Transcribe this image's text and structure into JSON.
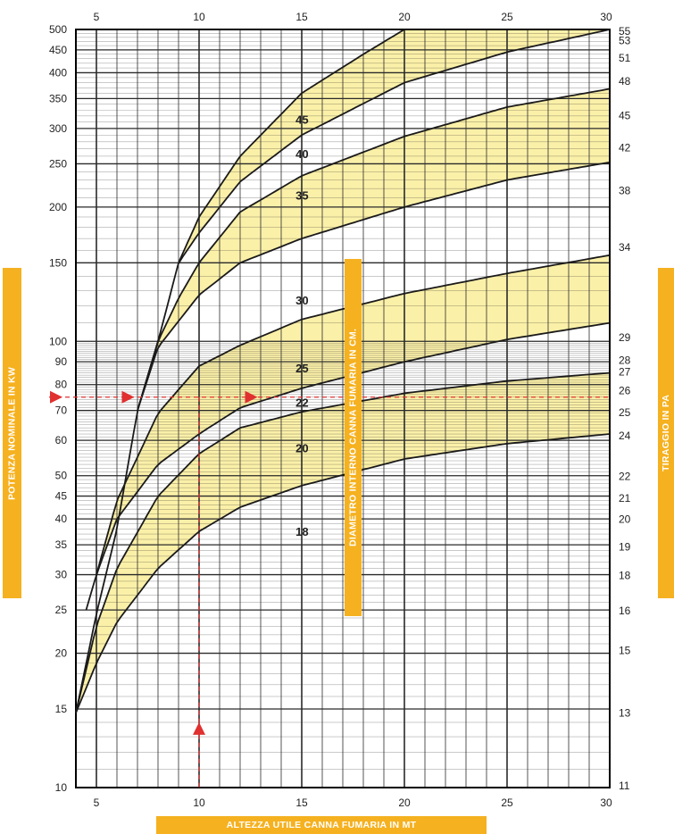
{
  "chart_data": {
    "type": "line",
    "x_axis": {
      "label": "ALTEZZA UTILE CANNA FUMARIA IN MT",
      "range": [
        4,
        30
      ],
      "ticks": [
        5,
        10,
        15,
        20,
        25,
        30
      ]
    },
    "y_axis_left": {
      "label": "POTENZA NOMINALE IN KW",
      "scale": "log",
      "range": [
        10,
        500
      ],
      "ticks": [
        10,
        15,
        20,
        25,
        30,
        35,
        40,
        45,
        50,
        60,
        70,
        80,
        90,
        100,
        150,
        200,
        250,
        300,
        350,
        400,
        450,
        500
      ]
    },
    "y_axis_right": {
      "label": "TIRAGGIO IN PA",
      "ticks": [
        {
          "label": "11",
          "kw": 10
        },
        {
          "label": "13",
          "kw": 14.7
        },
        {
          "label": "15",
          "kw": 20.3
        },
        {
          "label": "16",
          "kw": 24.9
        },
        {
          "label": "18",
          "kw": 29.9
        },
        {
          "label": "19",
          "kw": 34.6
        },
        {
          "label": "20",
          "kw": 39.9
        },
        {
          "label": "21",
          "kw": 44.5
        },
        {
          "label": "22",
          "kw": 49.8
        },
        {
          "label": "24",
          "kw": 61.4
        },
        {
          "label": "25",
          "kw": 69.2
        },
        {
          "label": "26",
          "kw": 77.6
        },
        {
          "label": "27",
          "kw": 85.4
        },
        {
          "label": "28",
          "kw": 90.7
        },
        {
          "label": "29",
          "kw": 102.1
        },
        {
          "label": "34",
          "kw": 162.3
        },
        {
          "label": "38",
          "kw": 217.5
        },
        {
          "label": "42",
          "kw": 271.4
        },
        {
          "label": "45",
          "kw": 320.5
        },
        {
          "label": "48",
          "kw": 383.0
        },
        {
          "label": "51",
          "kw": 431.0
        },
        {
          "label": "53",
          "kw": 471.5
        },
        {
          "label": "55",
          "kw": 520.0
        }
      ]
    },
    "center_label": "DIAMETRO INTERNO CANNA FUMARIA IN CM.",
    "series": [
      {
        "name": "18",
        "x": [
          4,
          5,
          6,
          8,
          10,
          12,
          15,
          20,
          25,
          30
        ],
        "y": [
          14.7,
          19,
          23.5,
          31,
          37.5,
          42.5,
          47.5,
          54.5,
          59,
          62
        ]
      },
      {
        "name": "20",
        "x": [
          4,
          5,
          6,
          8,
          10,
          12,
          15,
          20,
          25,
          30
        ],
        "y": [
          14.7,
          23,
          31,
          45,
          56,
          64,
          69.5,
          76.5,
          81.5,
          85
        ]
      },
      {
        "name": "22",
        "x": [
          4.5,
          5,
          6,
          8,
          10,
          12,
          15,
          20,
          25,
          30
        ],
        "y": [
          25,
          30,
          40,
          53,
          62,
          71,
          78.5,
          90,
          101,
          110
        ]
      },
      {
        "name": "25",
        "x": [
          5,
          6,
          7,
          8,
          10,
          12,
          15,
          20,
          25,
          30
        ],
        "y": [
          30,
          44,
          55,
          69,
          88,
          98,
          112,
          128,
          142,
          156
        ]
      },
      {
        "name": "30",
        "x": [
          7,
          8,
          10,
          12,
          15,
          20,
          25,
          30
        ],
        "y": [
          70,
          97,
          127,
          150,
          170,
          200,
          230,
          252
        ]
      },
      {
        "name": "35",
        "x": [
          7,
          8,
          9,
          10,
          12,
          15,
          20,
          25,
          30
        ],
        "y": [
          70,
          100,
          125,
          150,
          195,
          235,
          288,
          335,
          368
        ]
      },
      {
        "name": "40",
        "x": [
          4,
          5,
          6,
          7,
          8,
          9,
          10,
          12,
          15,
          20,
          25,
          30
        ],
        "y": [
          14.7,
          24.5,
          38,
          70,
          100,
          150,
          175,
          228,
          290,
          380,
          445,
          500
        ]
      },
      {
        "name": "45",
        "x": [
          9,
          10,
          12,
          15,
          18,
          20
        ],
        "y": [
          150,
          190,
          260,
          360,
          440,
          500
        ]
      }
    ],
    "shaded_bands": [
      {
        "between": [
          "18",
          "20"
        ],
        "color": "#fbf0a8"
      },
      {
        "between": [
          "22",
          "25"
        ],
        "color": "#fbf0a8"
      },
      {
        "between": [
          "30",
          "35"
        ],
        "color": "#fbf0a8"
      },
      {
        "between": [
          "40",
          "45"
        ],
        "color": "#fbf0a8"
      }
    ],
    "curve_labels": [
      {
        "text": "18",
        "x": 14.7,
        "y": 37
      },
      {
        "text": "20",
        "x": 14.7,
        "y": 57
      },
      {
        "text": "22",
        "x": 14.7,
        "y": 72
      },
      {
        "text": "25",
        "x": 14.7,
        "y": 86
      },
      {
        "text": "30",
        "x": 14.7,
        "y": 122
      },
      {
        "text": "35",
        "x": 14.7,
        "y": 210
      },
      {
        "text": "40",
        "x": 14.7,
        "y": 260
      },
      {
        "text": "45",
        "x": 14.7,
        "y": 310
      }
    ],
    "example": {
      "x": 10,
      "y": 75,
      "color": "#e03030",
      "markers": [
        {
          "x": 3.9,
          "y": 75,
          "dir": "right"
        },
        {
          "x": 6.5,
          "y": 75,
          "dir": "right"
        },
        {
          "x": 12.5,
          "y": 75,
          "dir": "right"
        },
        {
          "x": 10,
          "y": 13.5,
          "dir": "up"
        }
      ]
    },
    "colors": {
      "band": "#fbf0a8",
      "line": "#1a1a1a",
      "grid": "#2a2a2a",
      "label_bg": "#f5b120"
    }
  }
}
